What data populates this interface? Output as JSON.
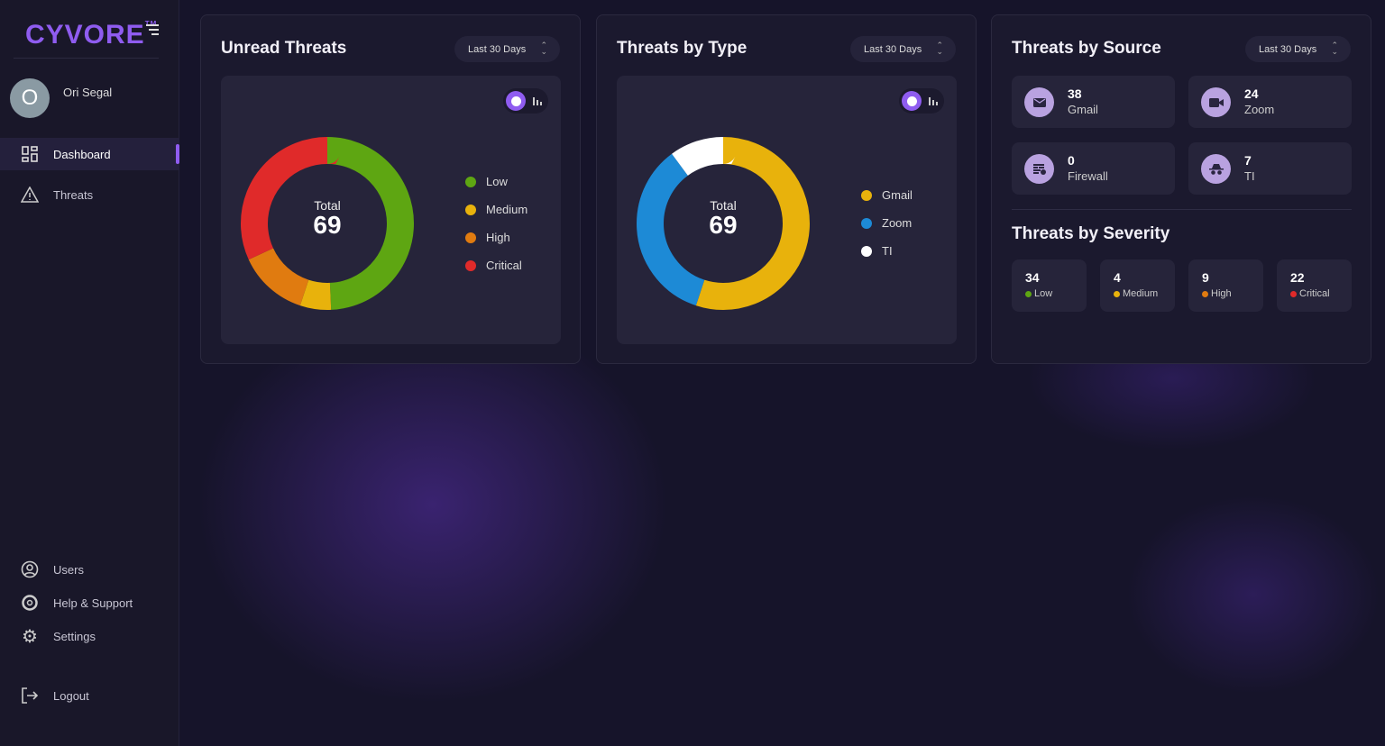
{
  "brand": {
    "logo": "CYVORE",
    "tm": "TM"
  },
  "user": {
    "initial": "O",
    "name": "Ori Segal"
  },
  "nav": {
    "top": [
      {
        "label": "Dashboard",
        "icon": "dashboard-grid-icon",
        "active": true
      },
      {
        "label": "Threats",
        "icon": "warning-triangle-icon"
      }
    ],
    "bottom": [
      {
        "label": "Users",
        "icon": "user-circle-icon"
      },
      {
        "label": "Help & Support",
        "icon": "lifebuoy-icon"
      },
      {
        "label": "Settings",
        "icon": "gear-icon"
      }
    ],
    "logout": "Logout"
  },
  "colors": {
    "accent": "#8f5cf0",
    "low": "#5ea612",
    "medium": "#e8b20c",
    "high": "#e07b10",
    "critical": "#e02a2a",
    "gmail": "#e8b20c",
    "zoom": "#1d8ad6",
    "ti": "#ffffff"
  },
  "unread": {
    "title": "Unread Threats",
    "range": "Last 30 Days",
    "total_label": "Total",
    "total": "69",
    "segments": [
      {
        "label": "Low",
        "value": 34,
        "color": "#5ea612"
      },
      {
        "label": "Medium",
        "value": 4,
        "color": "#e8b20c"
      },
      {
        "label": "High",
        "value": 9,
        "color": "#e07b10"
      },
      {
        "label": "Critical",
        "value": 22,
        "color": "#e02a2a"
      }
    ]
  },
  "by_type": {
    "title": "Threats by Type",
    "range": "Last 30 Days",
    "total_label": "Total",
    "total": "69",
    "segments": [
      {
        "label": "Gmail",
        "value": 38,
        "color": "#e8b20c"
      },
      {
        "label": "Zoom",
        "value": 24,
        "color": "#1d8ad6"
      },
      {
        "label": "TI",
        "value": 7,
        "color": "#ffffff"
      }
    ]
  },
  "by_source": {
    "title": "Threats by Source",
    "range": "Last 30 Days",
    "items": [
      {
        "count": "38",
        "label": "Gmail",
        "icon": "envelope-icon"
      },
      {
        "count": "24",
        "label": "Zoom",
        "icon": "video-camera-icon"
      },
      {
        "count": "0",
        "label": "Firewall",
        "icon": "firewall-icon"
      },
      {
        "count": "7",
        "label": "TI",
        "icon": "spy-incognito-icon"
      }
    ]
  },
  "by_severity": {
    "title": "Threats by Severity",
    "items": [
      {
        "count": "34",
        "label": "Low",
        "color": "#5ea612"
      },
      {
        "count": "4",
        "label": "Medium",
        "color": "#e8b20c"
      },
      {
        "count": "9",
        "label": "High",
        "color": "#e07b10"
      },
      {
        "count": "22",
        "label": "Critical",
        "color": "#e02a2a"
      }
    ]
  }
}
